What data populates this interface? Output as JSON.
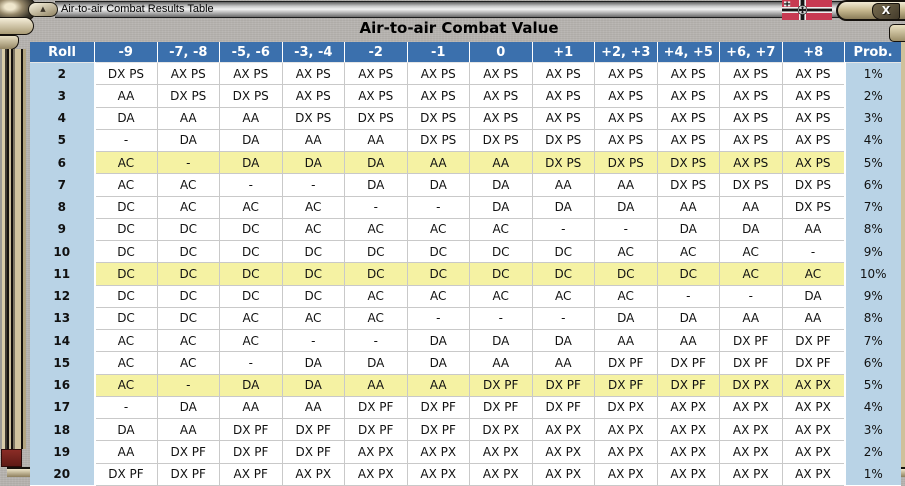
{
  "window": {
    "title": "Air-to-air Combat Results Table",
    "controls": {
      "collapse_icon": "▲",
      "close_icon": "X"
    },
    "flag_icon": "german-kriegsmarine-ensign"
  },
  "page_title": "Air-to-air Combat Value",
  "table": {
    "columns": [
      "Roll",
      "-9",
      "-7, -8",
      "-5, -6",
      "-3, -4",
      "-2",
      "-1",
      "0",
      "+1",
      "+2, +3",
      "+4, +5",
      "+6, +7",
      "+8",
      "Prob."
    ],
    "rows": [
      {
        "roll": "2",
        "cells": [
          "DX PS",
          "AX PS",
          "AX PS",
          "AX PS",
          "AX PS",
          "AX PS",
          "AX PS",
          "AX PS",
          "AX PS",
          "AX PS",
          "AX PS",
          "AX PS"
        ],
        "prob": "1%",
        "highlight": false
      },
      {
        "roll": "3",
        "cells": [
          "AA",
          "DX PS",
          "DX PS",
          "AX PS",
          "AX PS",
          "AX PS",
          "AX PS",
          "AX PS",
          "AX PS",
          "AX PS",
          "AX PS",
          "AX PS"
        ],
        "prob": "2%",
        "highlight": false
      },
      {
        "roll": "4",
        "cells": [
          "DA",
          "AA",
          "AA",
          "DX PS",
          "DX PS",
          "DX PS",
          "AX PS",
          "AX PS",
          "AX PS",
          "AX PS",
          "AX PS",
          "AX PS"
        ],
        "prob": "3%",
        "highlight": false
      },
      {
        "roll": "5",
        "cells": [
          "-",
          "DA",
          "DA",
          "AA",
          "AA",
          "DX PS",
          "DX PS",
          "DX PS",
          "AX PS",
          "AX PS",
          "AX PS",
          "AX PS"
        ],
        "prob": "4%",
        "highlight": false
      },
      {
        "roll": "6",
        "cells": [
          "AC",
          "-",
          "DA",
          "DA",
          "DA",
          "AA",
          "AA",
          "DX PS",
          "DX PS",
          "DX PS",
          "AX PS",
          "AX PS"
        ],
        "prob": "5%",
        "highlight": true
      },
      {
        "roll": "7",
        "cells": [
          "AC",
          "AC",
          "-",
          "-",
          "DA",
          "DA",
          "DA",
          "AA",
          "AA",
          "DX PS",
          "DX PS",
          "DX PS"
        ],
        "prob": "6%",
        "highlight": false
      },
      {
        "roll": "8",
        "cells": [
          "DC",
          "AC",
          "AC",
          "AC",
          "-",
          "-",
          "DA",
          "DA",
          "DA",
          "AA",
          "AA",
          "DX PS"
        ],
        "prob": "7%",
        "highlight": false
      },
      {
        "roll": "9",
        "cells": [
          "DC",
          "DC",
          "DC",
          "AC",
          "AC",
          "AC",
          "AC",
          "-",
          "-",
          "DA",
          "DA",
          "AA"
        ],
        "prob": "8%",
        "highlight": false
      },
      {
        "roll": "10",
        "cells": [
          "DC",
          "DC",
          "DC",
          "DC",
          "DC",
          "DC",
          "DC",
          "DC",
          "AC",
          "AC",
          "AC",
          "-"
        ],
        "prob": "9%",
        "highlight": false
      },
      {
        "roll": "11",
        "cells": [
          "DC",
          "DC",
          "DC",
          "DC",
          "DC",
          "DC",
          "DC",
          "DC",
          "DC",
          "DC",
          "AC",
          "AC"
        ],
        "prob": "10%",
        "highlight": true
      },
      {
        "roll": "12",
        "cells": [
          "DC",
          "DC",
          "DC",
          "DC",
          "AC",
          "AC",
          "AC",
          "AC",
          "AC",
          "-",
          "-",
          "DA"
        ],
        "prob": "9%",
        "highlight": false
      },
      {
        "roll": "13",
        "cells": [
          "DC",
          "DC",
          "AC",
          "AC",
          "AC",
          "-",
          "-",
          "-",
          "DA",
          "DA",
          "AA",
          "AA"
        ],
        "prob": "8%",
        "highlight": false
      },
      {
        "roll": "14",
        "cells": [
          "AC",
          "AC",
          "AC",
          "-",
          "-",
          "DA",
          "DA",
          "DA",
          "AA",
          "AA",
          "DX PF",
          "DX PF"
        ],
        "prob": "7%",
        "highlight": false
      },
      {
        "roll": "15",
        "cells": [
          "AC",
          "AC",
          "-",
          "DA",
          "DA",
          "DA",
          "AA",
          "AA",
          "DX PF",
          "DX PF",
          "DX PF",
          "DX PF"
        ],
        "prob": "6%",
        "highlight": false
      },
      {
        "roll": "16",
        "cells": [
          "AC",
          "-",
          "DA",
          "DA",
          "AA",
          "AA",
          "DX PF",
          "DX PF",
          "DX PF",
          "DX PF",
          "DX PX",
          "AX PX"
        ],
        "prob": "5%",
        "highlight": true
      },
      {
        "roll": "17",
        "cells": [
          "-",
          "DA",
          "AA",
          "AA",
          "DX PF",
          "DX PF",
          "DX PF",
          "DX PF",
          "DX PX",
          "AX PX",
          "AX PX",
          "AX PX"
        ],
        "prob": "4%",
        "highlight": false
      },
      {
        "roll": "18",
        "cells": [
          "DA",
          "AA",
          "DX PF",
          "DX PF",
          "DX PF",
          "DX PF",
          "DX PX",
          "AX PX",
          "AX PX",
          "AX PX",
          "AX PX",
          "AX PX"
        ],
        "prob": "3%",
        "highlight": false
      },
      {
        "roll": "19",
        "cells": [
          "AA",
          "DX PF",
          "DX PF",
          "DX PF",
          "AX PX",
          "AX PX",
          "AX PX",
          "AX PX",
          "AX PX",
          "AX PX",
          "AX PX",
          "AX PX"
        ],
        "prob": "2%",
        "highlight": false
      },
      {
        "roll": "20",
        "cells": [
          "DX PF",
          "DX PF",
          "AX PF",
          "AX PX",
          "AX PX",
          "AX PX",
          "AX PX",
          "AX PX",
          "AX PX",
          "AX PX",
          "AX PX",
          "AX PX"
        ],
        "prob": "1%",
        "highlight": false
      }
    ]
  },
  "colors": {
    "header_blue": "#3b70ad",
    "side_blue": "#b9d3e6",
    "highlight_yellow": "#f5f2a3",
    "grid_gray": "#c9c9c9",
    "frame_beige": "#c9bb96",
    "flag_red": "#c73a52"
  }
}
